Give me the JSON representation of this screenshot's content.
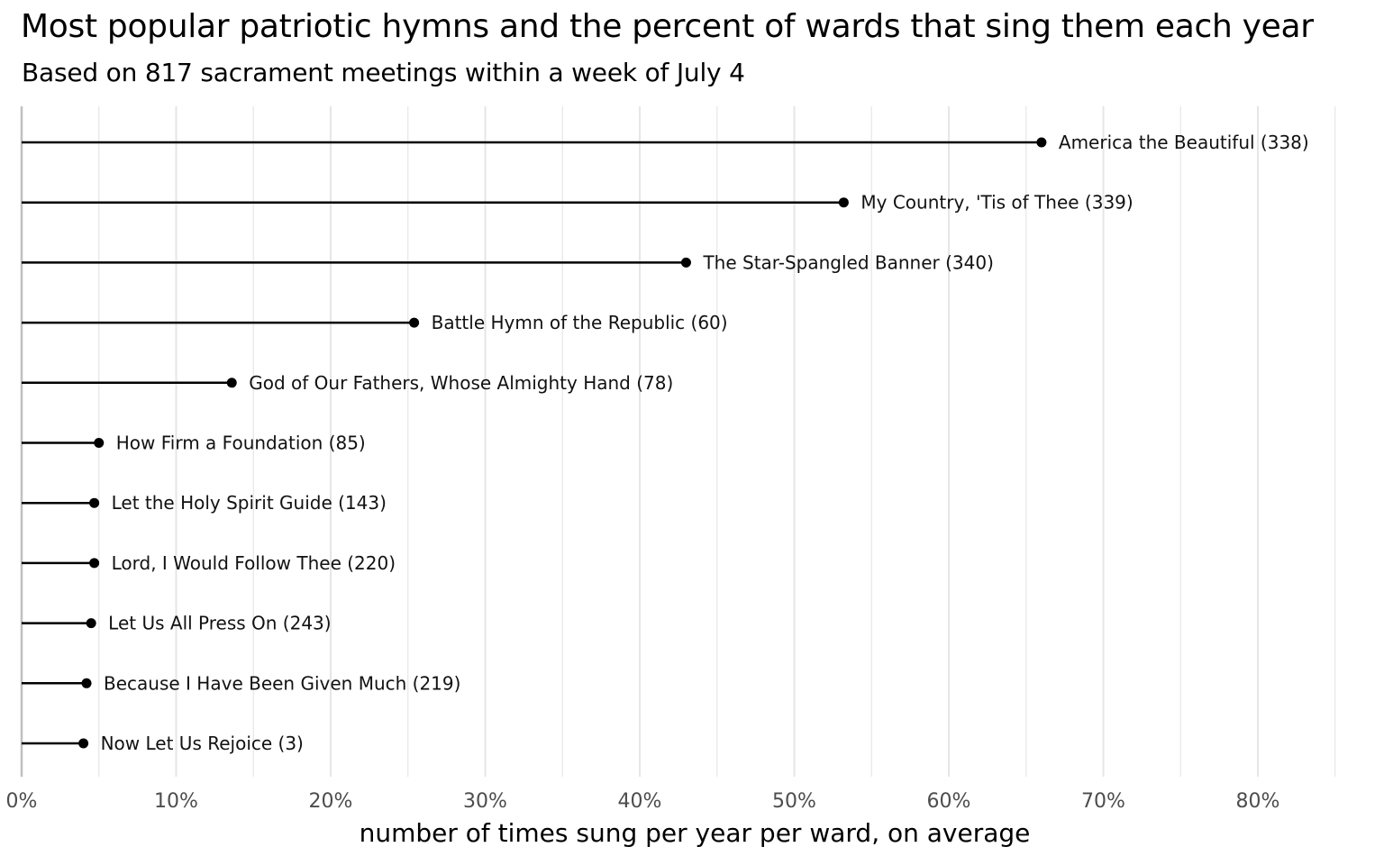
{
  "chart_data": {
    "type": "lollipop",
    "title": "Most popular patriotic hymns and the percent of wards that sing them each year",
    "subtitle": "Based on 817 sacrament meetings within a week of July 4",
    "xlabel": "number of times sung per year per ward, on average",
    "ylabel": "",
    "xlim": [
      0,
      85
    ],
    "x_ticks": [
      0,
      10,
      20,
      30,
      40,
      50,
      60,
      70,
      80
    ],
    "x_tick_labels": [
      "0%",
      "10%",
      "20%",
      "30%",
      "40%",
      "50%",
      "60%",
      "70%",
      "80%"
    ],
    "x_unit": "%",
    "grid": "vertical",
    "legend": "none",
    "colors": {
      "mark": "#000000",
      "grid": "#e6e6e6",
      "axis": "#c0c0c0",
      "tick_text": "#4d4d4d"
    },
    "points": [
      {
        "label": "America the Beautiful (338)",
        "value": 66
      },
      {
        "label": "My Country, 'Tis of Thee (339)",
        "value": 53.2
      },
      {
        "label": "The Star-Spangled Banner (340)",
        "value": 43
      },
      {
        "label": "Battle Hymn of the Republic (60)",
        "value": 25.4
      },
      {
        "label": "God of Our Fathers, Whose Almighty Hand (78)",
        "value": 13.6
      },
      {
        "label": "How Firm a Foundation (85)",
        "value": 5
      },
      {
        "label": "Let the Holy Spirit Guide (143)",
        "value": 4.7
      },
      {
        "label": "Lord, I Would Follow Thee (220)",
        "value": 4.7
      },
      {
        "label": "Let Us All Press On (243)",
        "value": 4.5
      },
      {
        "label": "Because I Have Been Given Much (219)",
        "value": 4.2
      },
      {
        "label": "Now Let Us Rejoice (3)",
        "value": 4
      }
    ]
  }
}
